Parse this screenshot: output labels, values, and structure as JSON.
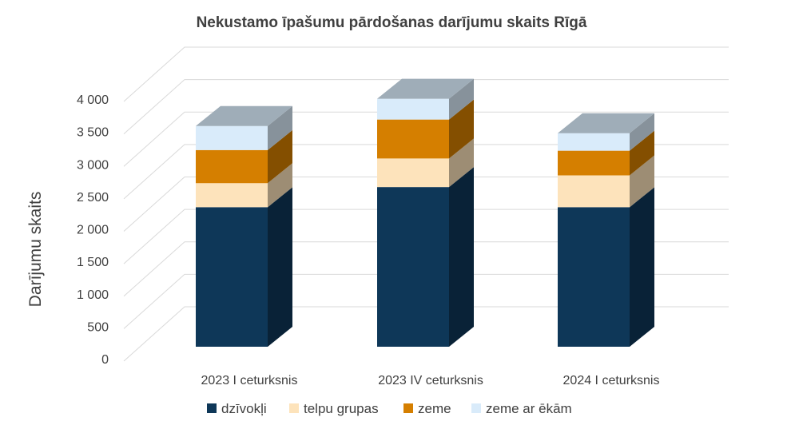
{
  "chart_data": {
    "type": "bar",
    "stacked": true,
    "three_d": true,
    "title": "Nekustamo īpašumu pārdošanas darījumu skaits Rīgā",
    "ylabel": "Darījumu skaits",
    "xlabel": "",
    "categories": [
      "2023 I ceturksnis",
      "2023 IV ceturksnis",
      "2024 I ceturksnis"
    ],
    "ylim": [
      0,
      4000
    ],
    "yticks": [
      0,
      500,
      1000,
      1500,
      2000,
      2500,
      3000,
      3500,
      4000
    ],
    "ytick_labels": [
      "0",
      "500",
      "1 000",
      "1 500",
      "2 000",
      "2 500",
      "3 000",
      "3 500",
      "4 000"
    ],
    "grid": true,
    "legend_position": "bottom",
    "series": [
      {
        "name": "dzīvokļi",
        "color": "#0e3758",
        "values": [
          2150,
          2460,
          2150
        ]
      },
      {
        "name": "telpu grupas",
        "color": "#fde3bb",
        "values": [
          370,
          440,
          490
        ]
      },
      {
        "name": "zeme",
        "color": "#d57f00",
        "values": [
          510,
          600,
          380
        ]
      },
      {
        "name": "zeme ar ēkām",
        "color": "#d9ebfa",
        "values": [
          370,
          320,
          270
        ]
      }
    ]
  }
}
